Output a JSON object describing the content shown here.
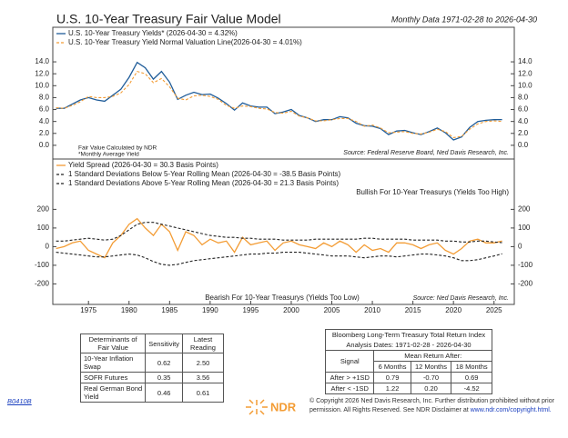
{
  "chart_data": [
    {
      "type": "line",
      "title": "U.S. 10-Year Treasury Fair Value Model",
      "subtitle": "Monthly Data 1971-02-28 to 2026-04-30",
      "x": [
        1971,
        1972,
        1973,
        1974,
        1975,
        1976,
        1977,
        1978,
        1979,
        1980,
        1981,
        1982,
        1983,
        1984,
        1985,
        1986,
        1987,
        1988,
        1989,
        1990,
        1991,
        1992,
        1993,
        1994,
        1995,
        1996,
        1997,
        1998,
        1999,
        2000,
        2001,
        2002,
        2003,
        2004,
        2005,
        2006,
        2007,
        2008,
        2009,
        2010,
        2011,
        2012,
        2013,
        2014,
        2015,
        2016,
        2017,
        2018,
        2019,
        2020,
        2021,
        2022,
        2023,
        2024,
        2025,
        2026
      ],
      "series": [
        {
          "name": "U.S. 10-Year Treasury Yields* (2026-04-30 = 4.32%)",
          "color": "#1f5c99",
          "dashed": false,
          "values": [
            6.2,
            6.2,
            6.9,
            7.6,
            8.0,
            7.6,
            7.4,
            8.4,
            9.4,
            11.4,
            13.9,
            13.0,
            11.1,
            12.4,
            10.6,
            7.7,
            8.4,
            8.9,
            8.5,
            8.6,
            7.9,
            7.0,
            5.9,
            7.1,
            6.6,
            6.4,
            6.4,
            5.3,
            5.6,
            6.0,
            5.0,
            4.6,
            4.0,
            4.3,
            4.3,
            4.8,
            4.6,
            3.7,
            3.3,
            3.2,
            2.8,
            1.8,
            2.4,
            2.5,
            2.1,
            1.8,
            2.3,
            2.9,
            2.1,
            0.9,
            1.4,
            3.0,
            4.0,
            4.2,
            4.3,
            4.32
          ]
        },
        {
          "name": "U.S. 10-Year Treasury Yield Normal Valuation Line(2026-04-30 = 4.01%)",
          "color": "#f39c34",
          "dashed": true,
          "values": [
            6.3,
            6.2,
            6.7,
            7.3,
            8.2,
            8.0,
            8.0,
            8.2,
            8.8,
            10.2,
            12.4,
            12.0,
            10.5,
            11.2,
            9.8,
            7.9,
            7.6,
            8.3,
            8.4,
            8.2,
            7.7,
            6.7,
            6.2,
            6.6,
            6.5,
            6.2,
            6.1,
            5.5,
            5.4,
            5.7,
            4.9,
            4.6,
            4.1,
            4.1,
            4.3,
            4.5,
            4.5,
            4.0,
            3.2,
            3.4,
            2.9,
            2.1,
            2.2,
            2.3,
            2.0,
            1.9,
            2.2,
            2.7,
            2.3,
            1.3,
            1.5,
            2.7,
            3.6,
            4.0,
            4.1,
            4.01
          ]
        }
      ],
      "xlim": [
        1970.6,
        2027.5
      ],
      "ylim": [
        -2.3,
        19.8
      ],
      "yticks": [
        {
          "value": 0,
          "label": "0.0"
        },
        {
          "value": 2,
          "label": "2.0"
        },
        {
          "value": 4,
          "label": "4.0"
        },
        {
          "value": 6,
          "label": "6.0"
        },
        {
          "value": 8,
          "label": "8.0"
        },
        {
          "value": 10,
          "label": "10.0"
        },
        {
          "value": 12,
          "label": "12.0"
        },
        {
          "value": 14,
          "label": "14.0"
        }
      ],
      "legend": "upper left",
      "notes": [
        "Fair Value Calculated by NDR",
        "*Monthly Average Yield"
      ],
      "source": "Source: Federal Reserve Board, Ned Davis Research, Inc."
    },
    {
      "type": "line",
      "x": [
        1971,
        1972,
        1973,
        1974,
        1975,
        1976,
        1977,
        1978,
        1979,
        1980,
        1981,
        1982,
        1983,
        1984,
        1985,
        1986,
        1987,
        1988,
        1989,
        1990,
        1991,
        1992,
        1993,
        1994,
        1995,
        1996,
        1997,
        1998,
        1999,
        2000,
        2001,
        2002,
        2003,
        2004,
        2005,
        2006,
        2007,
        2008,
        2009,
        2010,
        2011,
        2012,
        2013,
        2014,
        2015,
        2016,
        2017,
        2018,
        2019,
        2020,
        2021,
        2022,
        2023,
        2024,
        2025,
        2026
      ],
      "series": [
        {
          "name": "Yield Spread (2026-04-30 = 30.3 Basis Points)",
          "color": "#f39c34",
          "dashed": false,
          "values": [
            -10,
            0,
            20,
            30,
            -20,
            -40,
            -60,
            20,
            60,
            120,
            150,
            100,
            60,
            120,
            80,
            -20,
            80,
            60,
            10,
            40,
            20,
            30,
            -30,
            50,
            10,
            20,
            30,
            -20,
            20,
            30,
            10,
            0,
            -10,
            20,
            0,
            30,
            10,
            -30,
            10,
            -20,
            -10,
            -30,
            20,
            20,
            10,
            -10,
            10,
            20,
            -20,
            -40,
            -10,
            30,
            40,
            20,
            20,
            30.3
          ]
        },
        {
          "name": "1 Standard Deviations Below 5-Year Rolling Mean (2026-04-30 = -38.5 Basis Points)",
          "color": "#222222",
          "dashed": true,
          "values": [
            -30,
            -35,
            -40,
            -45,
            -50,
            -55,
            -55,
            -50,
            -45,
            -40,
            -45,
            -60,
            -80,
            -95,
            -100,
            -95,
            -85,
            -75,
            -70,
            -65,
            -60,
            -55,
            -50,
            -45,
            -40,
            -40,
            -35,
            -35,
            -30,
            -30,
            -30,
            -35,
            -40,
            -45,
            -50,
            -50,
            -50,
            -55,
            -60,
            -55,
            -50,
            -50,
            -55,
            -50,
            -45,
            -40,
            -40,
            -45,
            -50,
            -60,
            -75,
            -75,
            -70,
            -60,
            -50,
            -38.5
          ]
        },
        {
          "name": "1 Standard Deviations Above 5-Year Rolling Mean (2026-04-30 = 21.3 Basis Points)",
          "color": "#222222",
          "dashed": true,
          "values": [
            30,
            30,
            35,
            40,
            45,
            40,
            35,
            40,
            60,
            90,
            120,
            130,
            130,
            120,
            110,
            100,
            90,
            80,
            70,
            60,
            55,
            50,
            50,
            45,
            45,
            40,
            40,
            40,
            35,
            35,
            35,
            35,
            40,
            40,
            40,
            40,
            40,
            40,
            45,
            45,
            40,
            40,
            40,
            40,
            35,
            35,
            35,
            35,
            30,
            30,
            25,
            25,
            30,
            30,
            25,
            21.3
          ]
        }
      ],
      "xlim": [
        1970.6,
        2027.5
      ],
      "ylim": [
        -310,
        470
      ],
      "yticks": [
        -200,
        -100,
        0,
        100,
        200
      ],
      "xticks": [
        1975,
        1980,
        1985,
        1990,
        1995,
        2000,
        2005,
        2010,
        2015,
        2020,
        2025
      ],
      "legend": "upper left",
      "bullish": "Bullish For 10-Year Treasurys (Yields Too High)",
      "bearish": "Bearish For 10-Year Treasurys (Yields Too Low)",
      "source": "Source: Ned Davis Research, Inc."
    }
  ],
  "determinants_table": {
    "columns": [
      "Determinants of Fair Value",
      "Sensitivity",
      "Latest Reading"
    ],
    "rows": [
      [
        "10-Year Inflation Swap",
        "0.62",
        "2.50"
      ],
      [
        "SOFR Futures",
        "0.35",
        "3.56"
      ],
      [
        "Real German Bond Yield",
        "0.46",
        "0.61"
      ]
    ]
  },
  "returns_table": {
    "title": "Bloomberg Long-Term Treasury Total Return Index",
    "subtitle": "Analysis Dates: 1971-02-28 - 2026-04-30",
    "signal_header": "Signal",
    "group_header": "Mean Return After:",
    "columns": [
      "6 Months",
      "12 Months",
      "18 Months"
    ],
    "rows": [
      [
        "After > +1SD",
        "0.79",
        "-0.70",
        "0.69"
      ],
      [
        "After < -1SD",
        "1.22",
        "0.20",
        "-4.52"
      ]
    ]
  },
  "footer": {
    "code": "B0410B",
    "logo": "NDR",
    "copyright": "© Copyright 2026 Ned Davis Research, Inc. Further distribution prohibited without prior permission. All Rights Reserved. See NDR Disclaimer at",
    "link": "www.ndr.com/copyright.html."
  }
}
